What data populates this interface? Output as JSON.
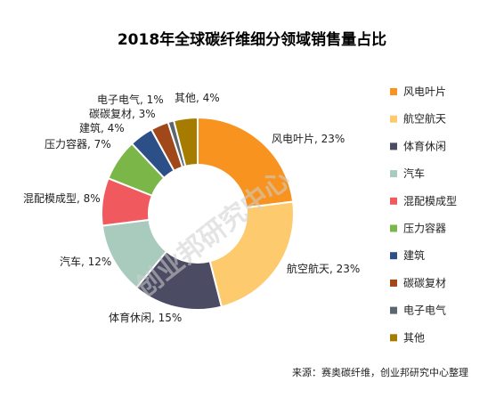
{
  "chart_data": {
    "type": "pie",
    "title": "2018年全球碳纤维细分领域销售量占比",
    "categories": [
      "风电叶片",
      "航空航天",
      "体育休闲",
      "汽车",
      "混配模成型",
      "压力容器",
      "建筑",
      "碳碳复材",
      "电子电气",
      "其他"
    ],
    "values": [
      23,
      23,
      15,
      12,
      8,
      7,
      4,
      3,
      1,
      4
    ],
    "unit": "%",
    "colors": [
      "#F7931E",
      "#FDCB6E",
      "#4B4B63",
      "#A9CBBE",
      "#F05A5E",
      "#7AB648",
      "#2D4F87",
      "#A0481A",
      "#5A6670",
      "#A67C00"
    ],
    "data_labels": [
      "风电叶片, 23%",
      "航空航天, 23%",
      "体育休闲, 15%",
      "汽车, 12%",
      "混配模成型, 8%",
      "压力容器, 7%",
      "建筑, 4%",
      "碳碳复材, 3%",
      "电子电气, 1%",
      "其他, 4%"
    ],
    "legend_position": "right",
    "donut": true
  },
  "watermark": "创业邦研究中心",
  "source": "来源：赛奥碳纤维，创业邦研究中心整理"
}
